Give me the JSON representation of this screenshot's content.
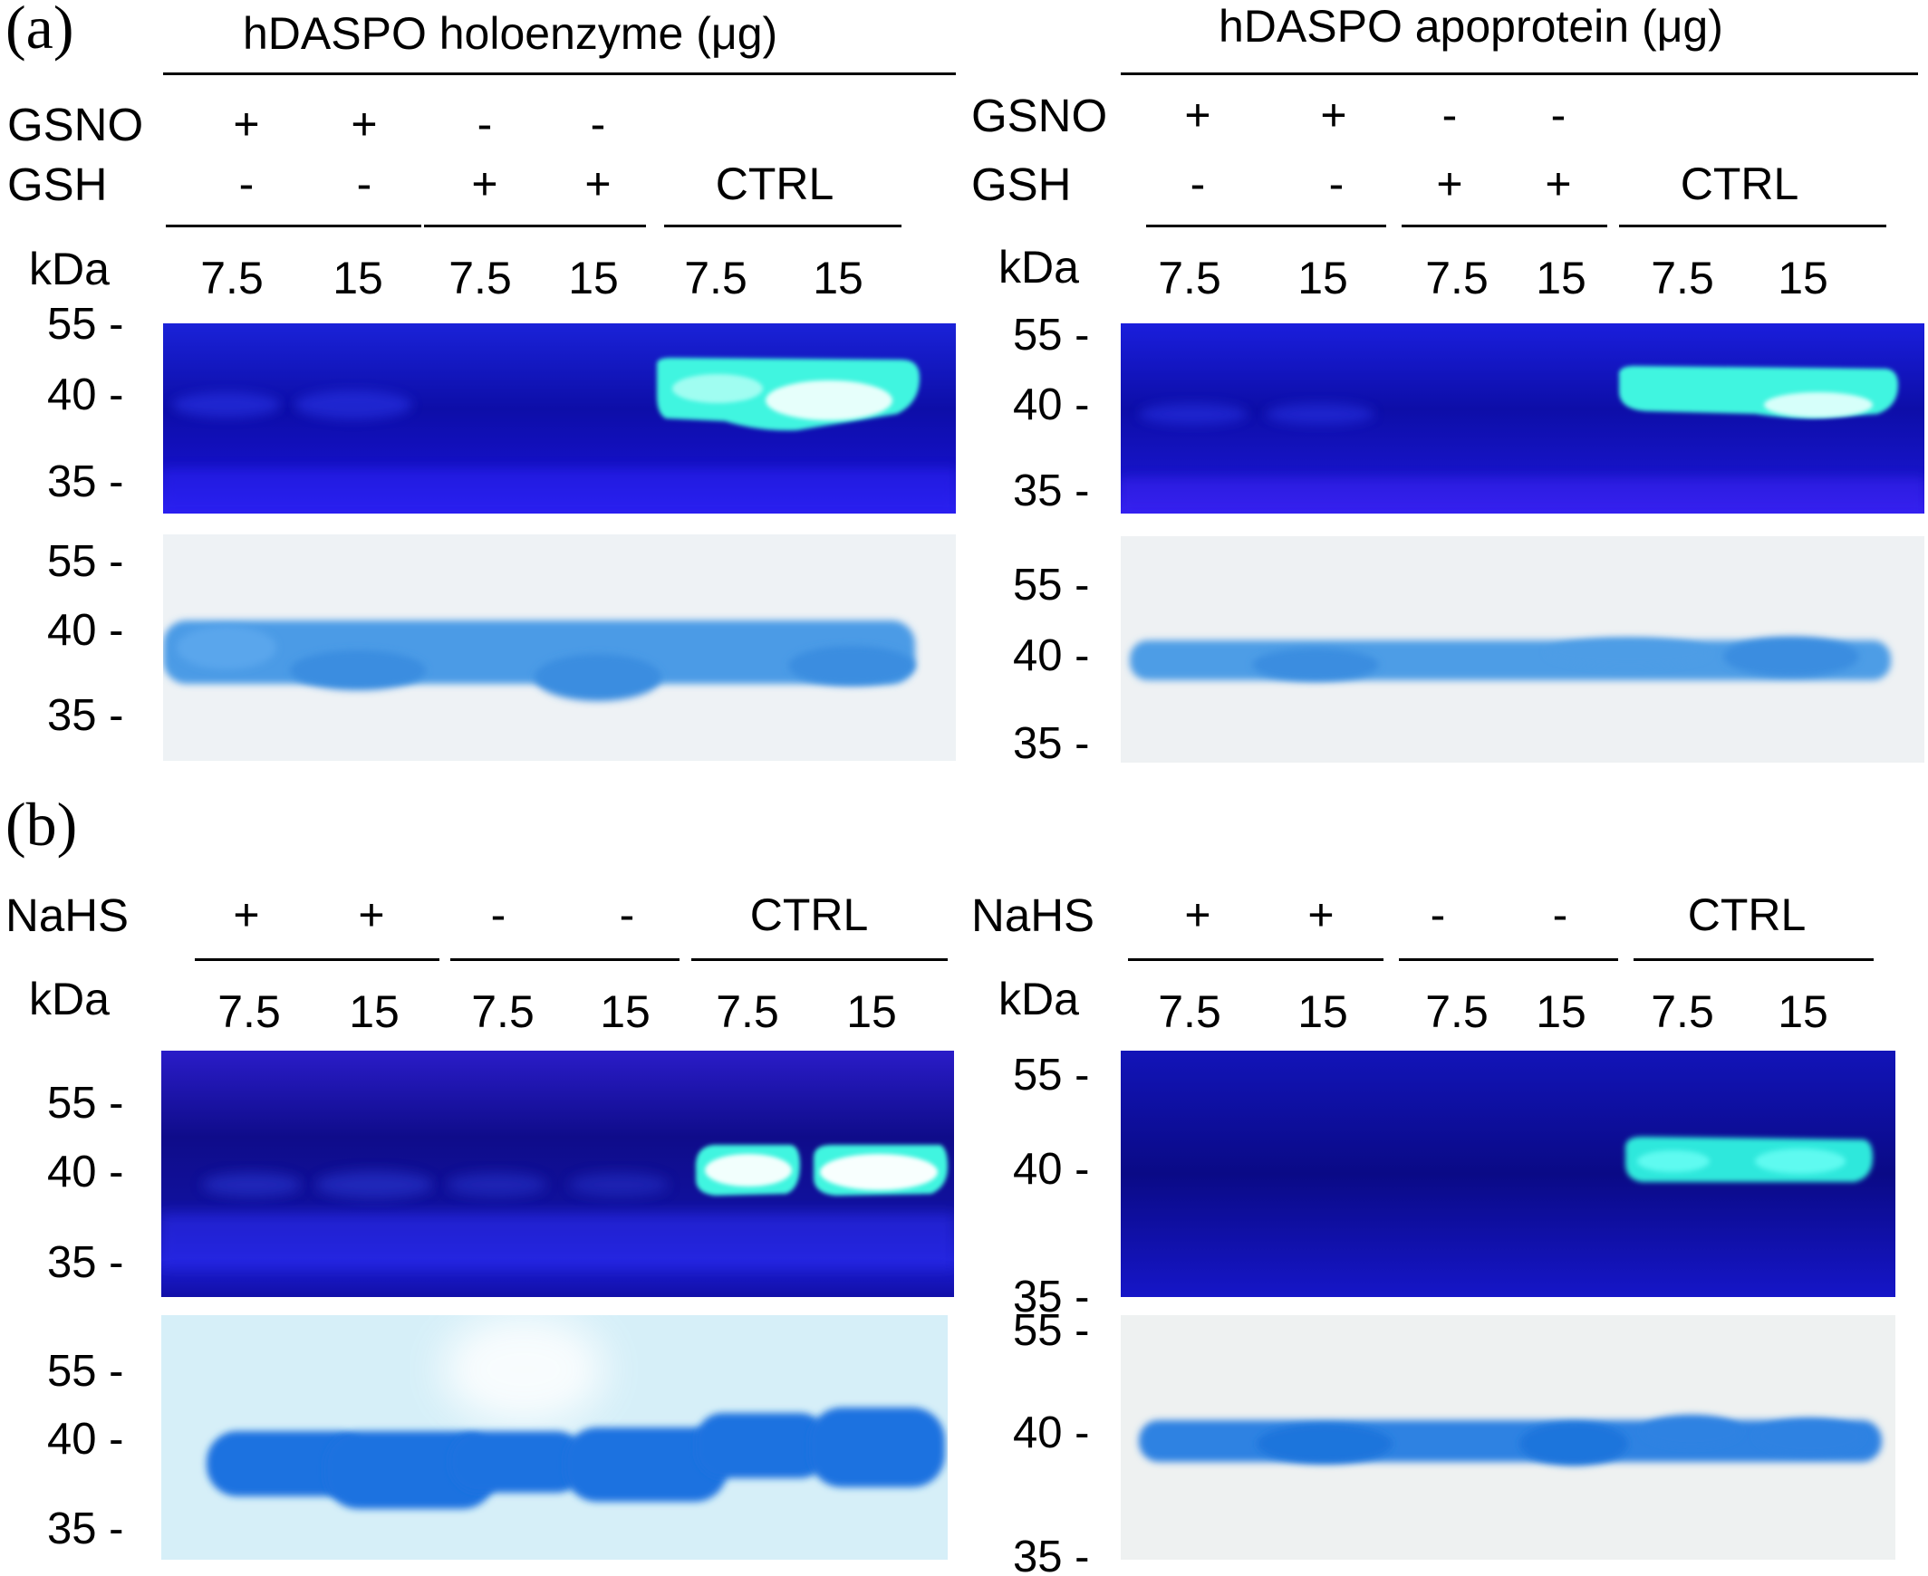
{
  "figure": {
    "panel_a": {
      "label": "(a)",
      "left": {
        "title": "hDASPO holoenzyme (μg)",
        "rows": {
          "gsno_label": "GSNO",
          "gsh_label": "GSH"
        },
        "gsno_signs": [
          "+",
          "+",
          "-",
          "-"
        ],
        "gsh_signs": [
          "-",
          "-",
          "+",
          "+"
        ],
        "ctrl": "CTRL",
        "kda": "kDa",
        "lanes": [
          "7.5",
          "15",
          "7.5",
          "15",
          "7.5",
          "15"
        ],
        "fluor_markers": [
          "55 -",
          "40 -",
          "35 -"
        ],
        "stain_markers": [
          "55 -",
          "40 -",
          "35 -"
        ]
      },
      "right": {
        "title": "hDASPO apoprotein (μg)",
        "rows": {
          "gsno_label": "GSNO",
          "gsh_label": "GSH"
        },
        "gsno_signs": [
          "+",
          "+",
          "-",
          "-"
        ],
        "gsh_signs": [
          "-",
          "-",
          "+",
          "+"
        ],
        "ctrl": "CTRL",
        "kda": "kDa",
        "lanes": [
          "7.5",
          "15",
          "7.5",
          "15",
          "7.5",
          "15"
        ],
        "fluor_markers": [
          "55 -",
          "40 -",
          "35 -"
        ],
        "stain_markers": [
          "55 -",
          "40 -",
          "35 -"
        ]
      }
    },
    "panel_b": {
      "label": "(b)",
      "left": {
        "row_label": "NaHS",
        "signs": [
          "+",
          "+",
          "-",
          "-"
        ],
        "ctrl": "CTRL",
        "kda": "kDa",
        "lanes": [
          "7.5",
          "15",
          "7.5",
          "15",
          "7.5",
          "15"
        ],
        "fluor_markers": [
          "55 -",
          "40 -",
          "35 -"
        ],
        "stain_markers": [
          "55 -",
          "40 -",
          "35 -"
        ]
      },
      "right": {
        "row_label": "NaHS",
        "signs": [
          "+",
          "+",
          "-",
          "-"
        ],
        "ctrl": "CTRL",
        "kda": "kDa",
        "lanes": [
          "7.5",
          "15",
          "7.5",
          "15",
          "7.5",
          "15"
        ],
        "fluor_markers": [
          "55 -",
          "40 -",
          "35 -"
        ],
        "stain_markers": [
          "55 -",
          "40 -",
          "35 -"
        ]
      }
    }
  },
  "colors": {
    "fluor_background": "#1a14e6",
    "fluor_band_bright": "#3ff5e0",
    "stain_background": "#eef2f5",
    "stain_band": "#3a8de0"
  }
}
